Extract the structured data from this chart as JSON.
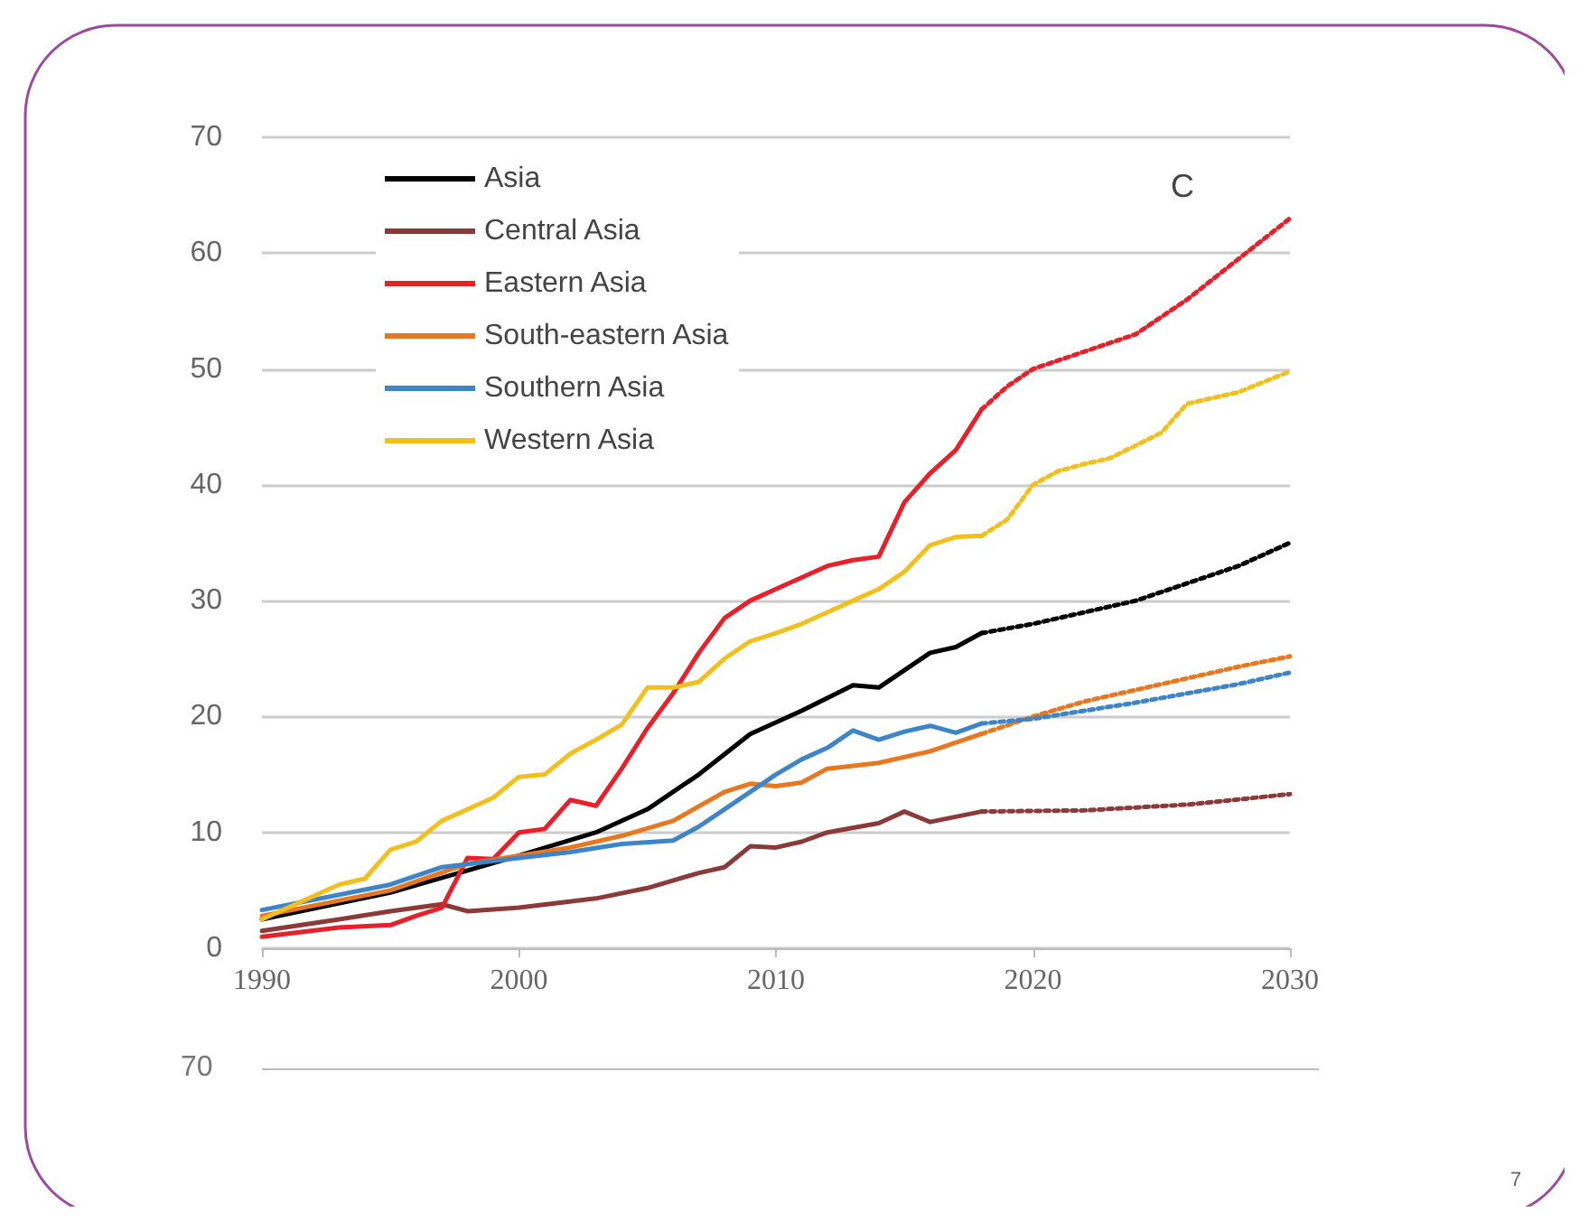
{
  "chart_data": {
    "type": "line",
    "xlim": [
      1990,
      2030
    ],
    "xticks": [
      1990,
      2000,
      2010,
      2020,
      2030
    ],
    "ylim": [
      0,
      70
    ],
    "yticks": [
      0,
      10,
      20,
      30,
      40,
      50,
      60,
      70
    ],
    "grid": "y",
    "legend": "top left",
    "marker": "none",
    "line_style": "solid",
    "annotations": [
      "C",
      "70",
      "7"
    ],
    "series": [
      {
        "name": "Asia",
        "color": "#000000",
        "x": [
          1990,
          1995,
          2000,
          2003,
          2005,
          2007,
          2009,
          2011,
          2013,
          2014,
          2015,
          2016,
          2017,
          2018
        ],
        "values": [
          2.5,
          4.8,
          8,
          10,
          12,
          15,
          18.5,
          20.5,
          22.7,
          22.5,
          24,
          25.5,
          26,
          27.2
        ]
      },
      {
        "name": "Central Asia",
        "color": "#8b3a3a",
        "x": [
          1990,
          1993,
          1995,
          1997,
          1998,
          2000,
          2003,
          2005,
          2007,
          2008,
          2009,
          2010,
          2011,
          2012,
          2014,
          2015,
          2016,
          2018
        ],
        "values": [
          1.5,
          2.5,
          3.2,
          3.8,
          3.2,
          3.5,
          4.3,
          5.2,
          6.5,
          7,
          8.8,
          8.7,
          9.2,
          10,
          10.8,
          11.8,
          10.9,
          11.8
        ]
      },
      {
        "name": "Eastern Asia",
        "color": "#e8202a",
        "x": [
          1990,
          1993,
          1995,
          1996,
          1997,
          1998,
          1999,
          2000,
          2001,
          2002,
          2003,
          2004,
          2005,
          2006,
          2007,
          2008,
          2009,
          2010,
          2011,
          2012,
          2013,
          2014,
          2015,
          2016,
          2017,
          2018
        ],
        "values": [
          1,
          1.8,
          2,
          2.8,
          3.5,
          7.8,
          7.7,
          10,
          10.3,
          12.8,
          12.3,
          15.5,
          19,
          22,
          25.5,
          28.5,
          30,
          31,
          32,
          33,
          33.5,
          33.8,
          38.5,
          41,
          43,
          46.5
        ]
      },
      {
        "name": "South-eastern Asia",
        "color": "#e87722",
        "x": [
          1990,
          1995,
          1998,
          2000,
          2002,
          2004,
          2006,
          2008,
          2009,
          2010,
          2011,
          2012,
          2014,
          2016,
          2018
        ],
        "values": [
          2.8,
          5,
          7.3,
          8,
          8.7,
          9.7,
          11,
          13.5,
          14.2,
          14,
          14.3,
          15.5,
          16,
          17,
          18.5
        ]
      },
      {
        "name": "Southern Asia",
        "color": "#3d85c6",
        "x": [
          1990,
          1995,
          1997,
          2000,
          2002,
          2004,
          2006,
          2007,
          2008,
          2009,
          2010,
          2011,
          2012,
          2013,
          2014,
          2015,
          2016,
          2017,
          2018
        ],
        "values": [
          3.3,
          5.5,
          7,
          7.8,
          8.3,
          9,
          9.3,
          10.5,
          12,
          13.5,
          15,
          16.3,
          17.3,
          18.8,
          18,
          18.7,
          19.2,
          18.6,
          19.4
        ]
      },
      {
        "name": "Western Asia",
        "color": "#f2c01e",
        "x": [
          1990,
          1993,
          1994,
          1995,
          1996,
          1997,
          1999,
          2000,
          2001,
          2002,
          2003,
          2004,
          2005,
          2006,
          2007,
          2008,
          2009,
          2010,
          2011,
          2012,
          2013,
          2014,
          2015,
          2016,
          2017,
          2018
        ],
        "values": [
          2.5,
          5.5,
          6,
          8.5,
          9.2,
          11,
          13,
          14.8,
          15,
          16.8,
          18,
          19.3,
          22.5,
          22.5,
          23,
          25,
          26.5,
          27.2,
          28,
          29,
          30,
          31,
          32.5,
          34.8,
          35.5,
          35.6
        ]
      },
      {
        "color": "#000000",
        "line_style": "dotted",
        "x": [
          2018,
          2020,
          2022,
          2024,
          2026,
          2028,
          2030
        ],
        "values": [
          27.2,
          28,
          29,
          30,
          31.5,
          33,
          35
        ]
      },
      {
        "color": "#8b3a3a",
        "line_style": "dotted",
        "x": [
          2018,
          2022,
          2026,
          2030
        ],
        "values": [
          11.8,
          11.9,
          12.4,
          13.3
        ]
      },
      {
        "color": "#e8202a",
        "line_style": "dotted",
        "x": [
          2018,
          2019,
          2020,
          2022,
          2024,
          2026,
          2028,
          2030
        ],
        "values": [
          46.5,
          48.5,
          50,
          51.5,
          53,
          56,
          59.5,
          63
        ]
      },
      {
        "color": "#e87722",
        "line_style": "dotted",
        "x": [
          2018,
          2020,
          2022,
          2024,
          2026,
          2028,
          2030
        ],
        "values": [
          18.5,
          20,
          21.3,
          22.3,
          23.3,
          24.3,
          25.2
        ]
      },
      {
        "color": "#3d85c6",
        "line_style": "dotted",
        "x": [
          2018,
          2020,
          2022,
          2024,
          2026,
          2028,
          2030
        ],
        "values": [
          19.4,
          19.8,
          20.5,
          21.2,
          22,
          22.8,
          23.8
        ]
      },
      {
        "color": "#f2c01e",
        "line_style": "dotted",
        "x": [
          2018,
          2019,
          2020,
          2021,
          2022,
          2023,
          2025,
          2026,
          2028,
          2030
        ],
        "values": [
          35.6,
          37,
          40,
          41.2,
          41.8,
          42.3,
          44.5,
          47,
          48,
          49.8
        ]
      }
    ]
  }
}
